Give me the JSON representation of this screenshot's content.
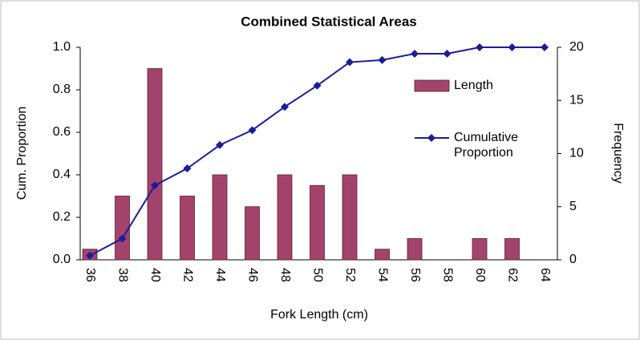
{
  "chart_data": {
    "type": "bar_line",
    "title": "Combined Statistical Areas",
    "x_label": "Fork Length (cm)",
    "y_label": "Cum. Proportion",
    "y2_label": "Frequency",
    "categories": [
      "36",
      "38",
      "40",
      "42",
      "44",
      "46",
      "48",
      "50",
      "52",
      "54",
      "56",
      "58",
      "60",
      "62",
      "64"
    ],
    "series": [
      {
        "name": "Length",
        "type": "bar",
        "axis": "y2",
        "color": "#a3436c",
        "values": [
          1,
          6,
          18,
          6,
          8,
          5,
          8,
          7,
          8,
          1,
          2,
          0,
          2,
          2,
          0
        ]
      },
      {
        "name": "Cumulative Proportion",
        "type": "line",
        "color": "#1c1c99",
        "values": [
          0.02,
          0.1,
          0.35,
          0.43,
          0.54,
          0.61,
          0.72,
          0.82,
          0.93,
          0.94,
          0.97,
          0.97,
          1.0,
          1.0,
          1.0
        ]
      }
    ],
    "ylim": [
      0,
      1
    ],
    "yticks": [
      {
        "value": 0,
        "label": "0.0"
      },
      0.2,
      0.4,
      0.6,
      0.8,
      {
        "value": 1,
        "label": "1.0"
      }
    ],
    "y2lim": [
      0,
      20
    ],
    "y2ticks": [
      0,
      5,
      10,
      15,
      20
    ],
    "legend": "right"
  }
}
